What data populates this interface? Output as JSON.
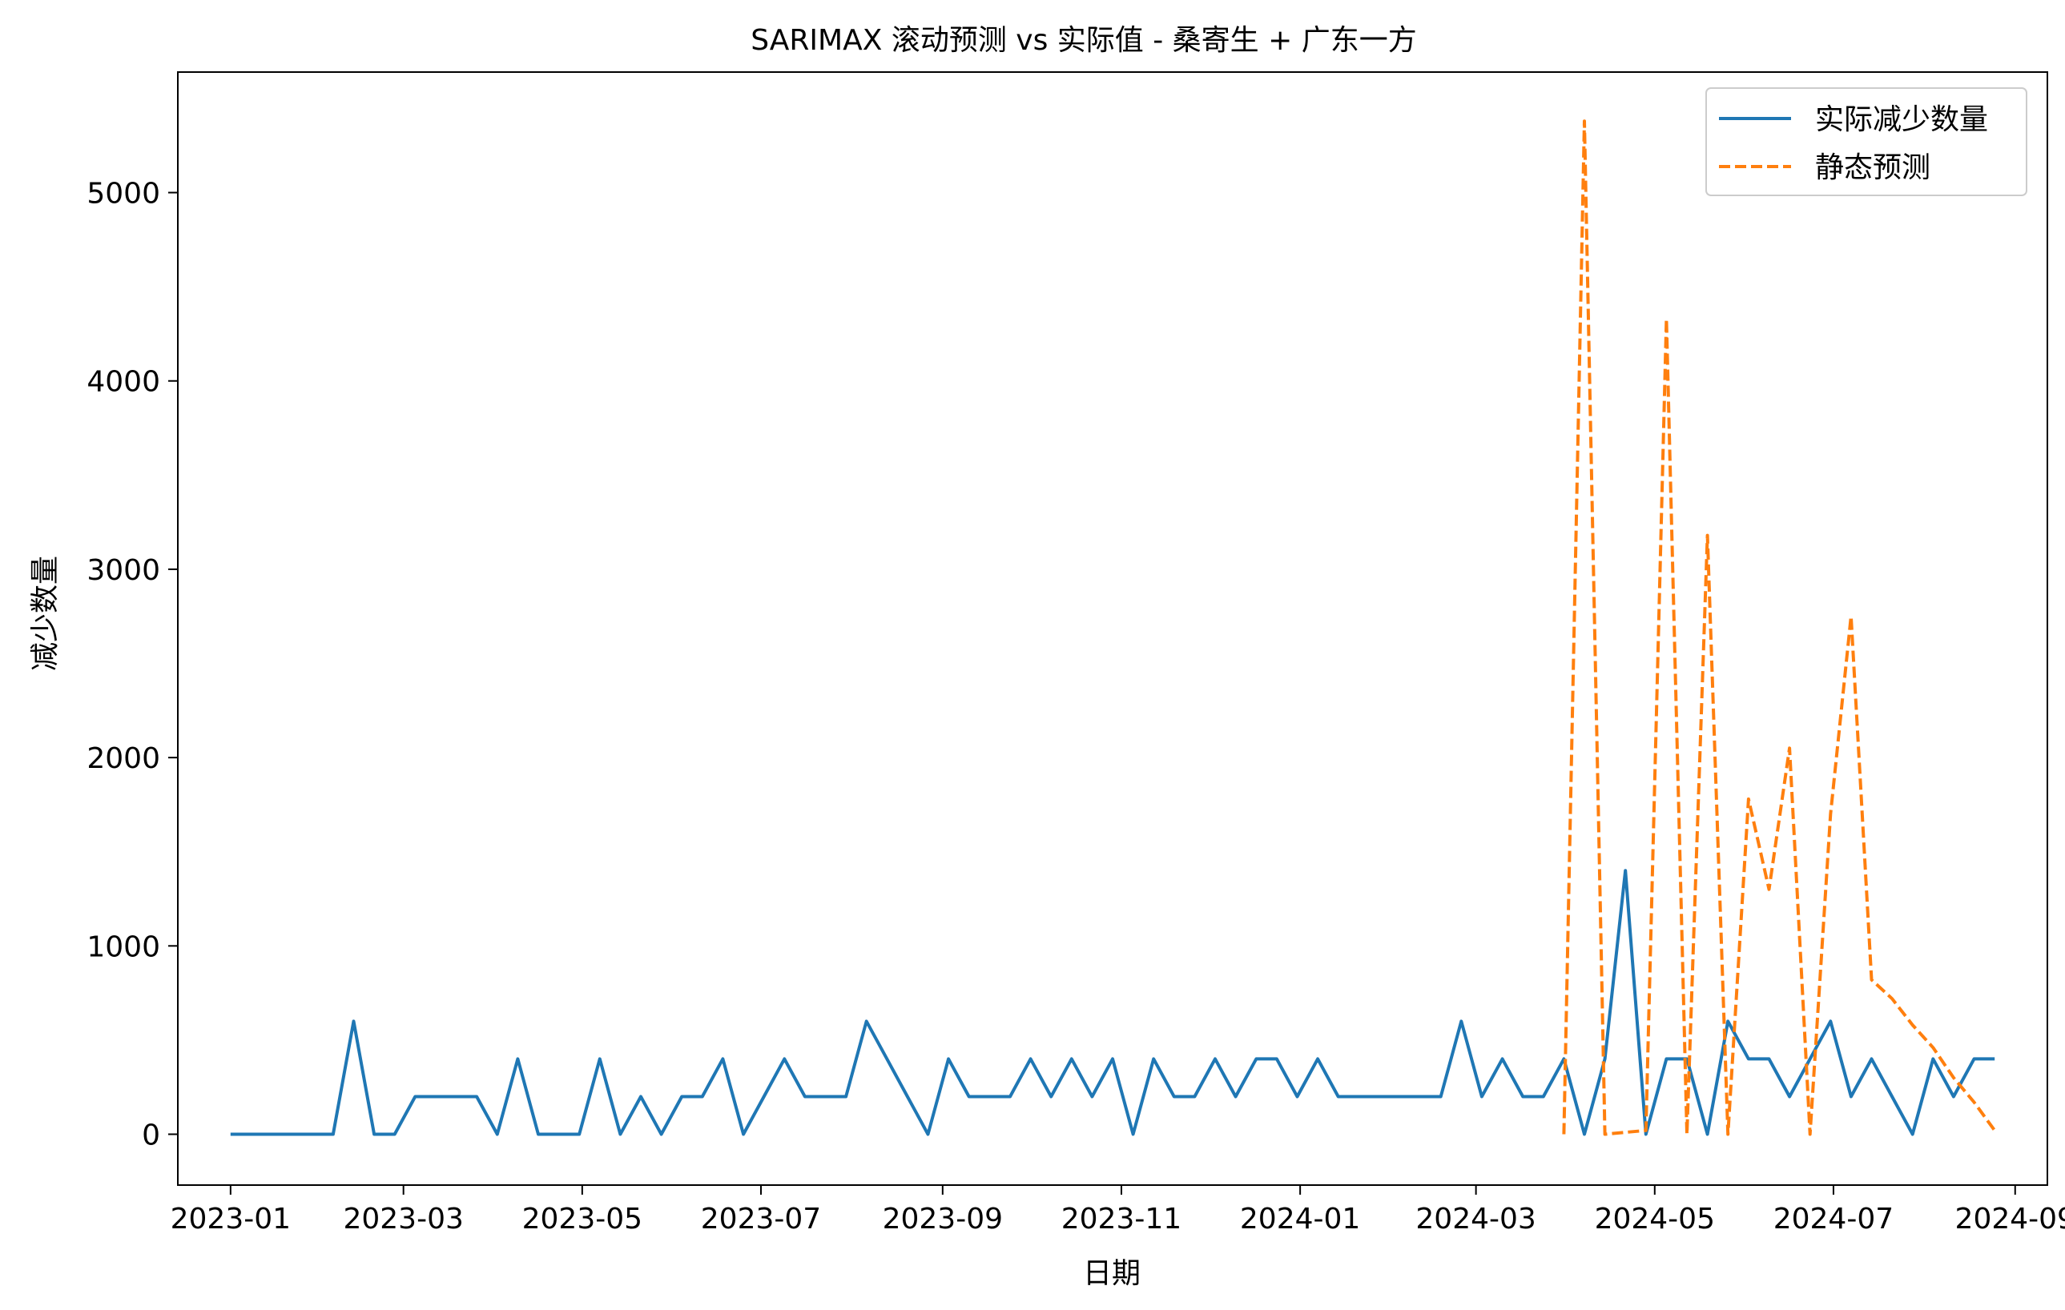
{
  "chart_data": {
    "type": "line",
    "title": "SARIMAX 滚动预测 vs 实际值 - 桑寄生 + 广东一方",
    "xlabel": "日期",
    "ylabel": "减少数量",
    "x_axis_type": "date",
    "xlim": [
      "2022-12-14",
      "2024-09-12"
    ],
    "ylim": [
      -270,
      5640
    ],
    "x_ticks": [
      "2023-01",
      "2023-03",
      "2023-05",
      "2023-07",
      "2023-09",
      "2023-11",
      "2024-01",
      "2024-03",
      "2024-05",
      "2024-07",
      "2024-09"
    ],
    "y_ticks": [
      0,
      1000,
      2000,
      3000,
      4000,
      5000
    ],
    "grid": false,
    "legend_position": "top-right",
    "series": [
      {
        "name": "实际减少数量",
        "color": "#1f77b4",
        "style": "solid",
        "x": [
          "2023-01-01",
          "2023-01-08",
          "2023-01-15",
          "2023-01-22",
          "2023-01-29",
          "2023-02-05",
          "2023-02-12",
          "2023-02-19",
          "2023-02-26",
          "2023-03-05",
          "2023-03-12",
          "2023-03-19",
          "2023-03-26",
          "2023-04-02",
          "2023-04-09",
          "2023-04-16",
          "2023-04-23",
          "2023-04-30",
          "2023-05-07",
          "2023-05-14",
          "2023-05-21",
          "2023-05-28",
          "2023-06-04",
          "2023-06-11",
          "2023-06-18",
          "2023-06-25",
          "2023-07-02",
          "2023-07-09",
          "2023-07-16",
          "2023-07-23",
          "2023-07-30",
          "2023-08-06",
          "2023-08-13",
          "2023-08-20",
          "2023-08-27",
          "2023-09-03",
          "2023-09-10",
          "2023-09-17",
          "2023-09-24",
          "2023-10-01",
          "2023-10-08",
          "2023-10-15",
          "2023-10-22",
          "2023-10-29",
          "2023-11-05",
          "2023-11-12",
          "2023-11-19",
          "2023-11-26",
          "2023-12-03",
          "2023-12-10",
          "2023-12-17",
          "2023-12-24",
          "2023-12-31",
          "2024-01-07",
          "2024-01-14",
          "2024-01-21",
          "2024-01-28",
          "2024-02-04",
          "2024-02-11",
          "2024-02-18",
          "2024-02-25",
          "2024-03-03",
          "2024-03-10",
          "2024-03-17",
          "2024-03-24",
          "2024-03-31",
          "2024-04-07",
          "2024-04-14",
          "2024-04-21",
          "2024-04-28",
          "2024-05-05",
          "2024-05-12",
          "2024-05-19",
          "2024-05-26",
          "2024-06-02",
          "2024-06-09",
          "2024-06-16",
          "2024-06-23",
          "2024-06-30",
          "2024-07-07",
          "2024-07-14",
          "2024-07-21",
          "2024-07-28",
          "2024-08-04",
          "2024-08-11",
          "2024-08-18",
          "2024-08-25"
        ],
        "values": [
          0,
          0,
          0,
          0,
          0,
          0,
          600,
          0,
          0,
          200,
          200,
          200,
          200,
          0,
          400,
          0,
          0,
          0,
          400,
          0,
          200,
          0,
          200,
          200,
          400,
          0,
          200,
          400,
          200,
          200,
          200,
          600,
          400,
          200,
          0,
          400,
          200,
          200,
          200,
          400,
          200,
          400,
          200,
          400,
          0,
          400,
          200,
          200,
          400,
          200,
          400,
          400,
          200,
          400,
          200,
          200,
          200,
          200,
          200,
          200,
          600,
          200,
          400,
          200,
          200,
          400,
          0,
          400,
          1400,
          0,
          400,
          400,
          0,
          600,
          400,
          400,
          200,
          400,
          600,
          200,
          400,
          200,
          0,
          400,
          200,
          400,
          400
        ]
      },
      {
        "name": "静态预测",
        "color": "#ff7f0e",
        "style": "dashed",
        "x": [
          "2024-03-31",
          "2024-04-07",
          "2024-04-14",
          "2024-04-21",
          "2024-04-28",
          "2024-05-05",
          "2024-05-12",
          "2024-05-19",
          "2024-05-26",
          "2024-06-02",
          "2024-06-09",
          "2024-06-16",
          "2024-06-23",
          "2024-06-30",
          "2024-07-07",
          "2024-07-14",
          "2024-07-21",
          "2024-07-28",
          "2024-08-04",
          "2024-08-11",
          "2024-08-18",
          "2024-08-25"
        ],
        "values": [
          0,
          5380,
          0,
          10,
          20,
          4330,
          0,
          3180,
          0,
          1780,
          1300,
          2050,
          0,
          1700,
          2750,
          820,
          720,
          580,
          460,
          300,
          170,
          20
        ]
      }
    ]
  }
}
